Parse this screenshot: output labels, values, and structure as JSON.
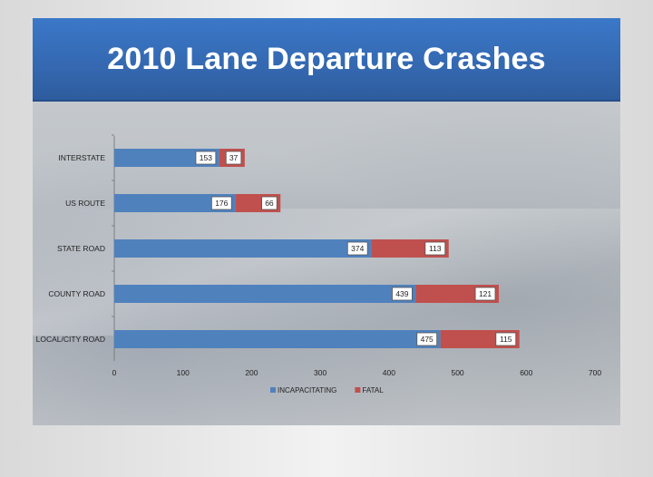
{
  "slide": {
    "title": "2010 Lane Departure Crashes"
  },
  "colors": {
    "incapacitating": "#4f81bd",
    "fatal": "#c0504d",
    "title_band": "#3a78c8"
  },
  "chart_data": {
    "type": "bar",
    "orientation": "horizontal",
    "stacked": true,
    "title": "",
    "xlabel": "",
    "ylabel": "",
    "categories": [
      "INTERSTATE",
      "US ROUTE",
      "STATE ROAD",
      "COUNTY ROAD",
      "LOCAL/CITY ROAD"
    ],
    "series": [
      {
        "name": "INCAPACITATING",
        "values": [
          153,
          176,
          374,
          439,
          475
        ]
      },
      {
        "name": "FATAL",
        "values": [
          37,
          66,
          113,
          121,
          115
        ]
      }
    ],
    "xlim": [
      0,
      700
    ],
    "xticks": [
      "0",
      "100",
      "200",
      "300",
      "400",
      "500",
      "600",
      "700"
    ],
    "grid": false,
    "legend": "bottom",
    "data_labels": true
  }
}
